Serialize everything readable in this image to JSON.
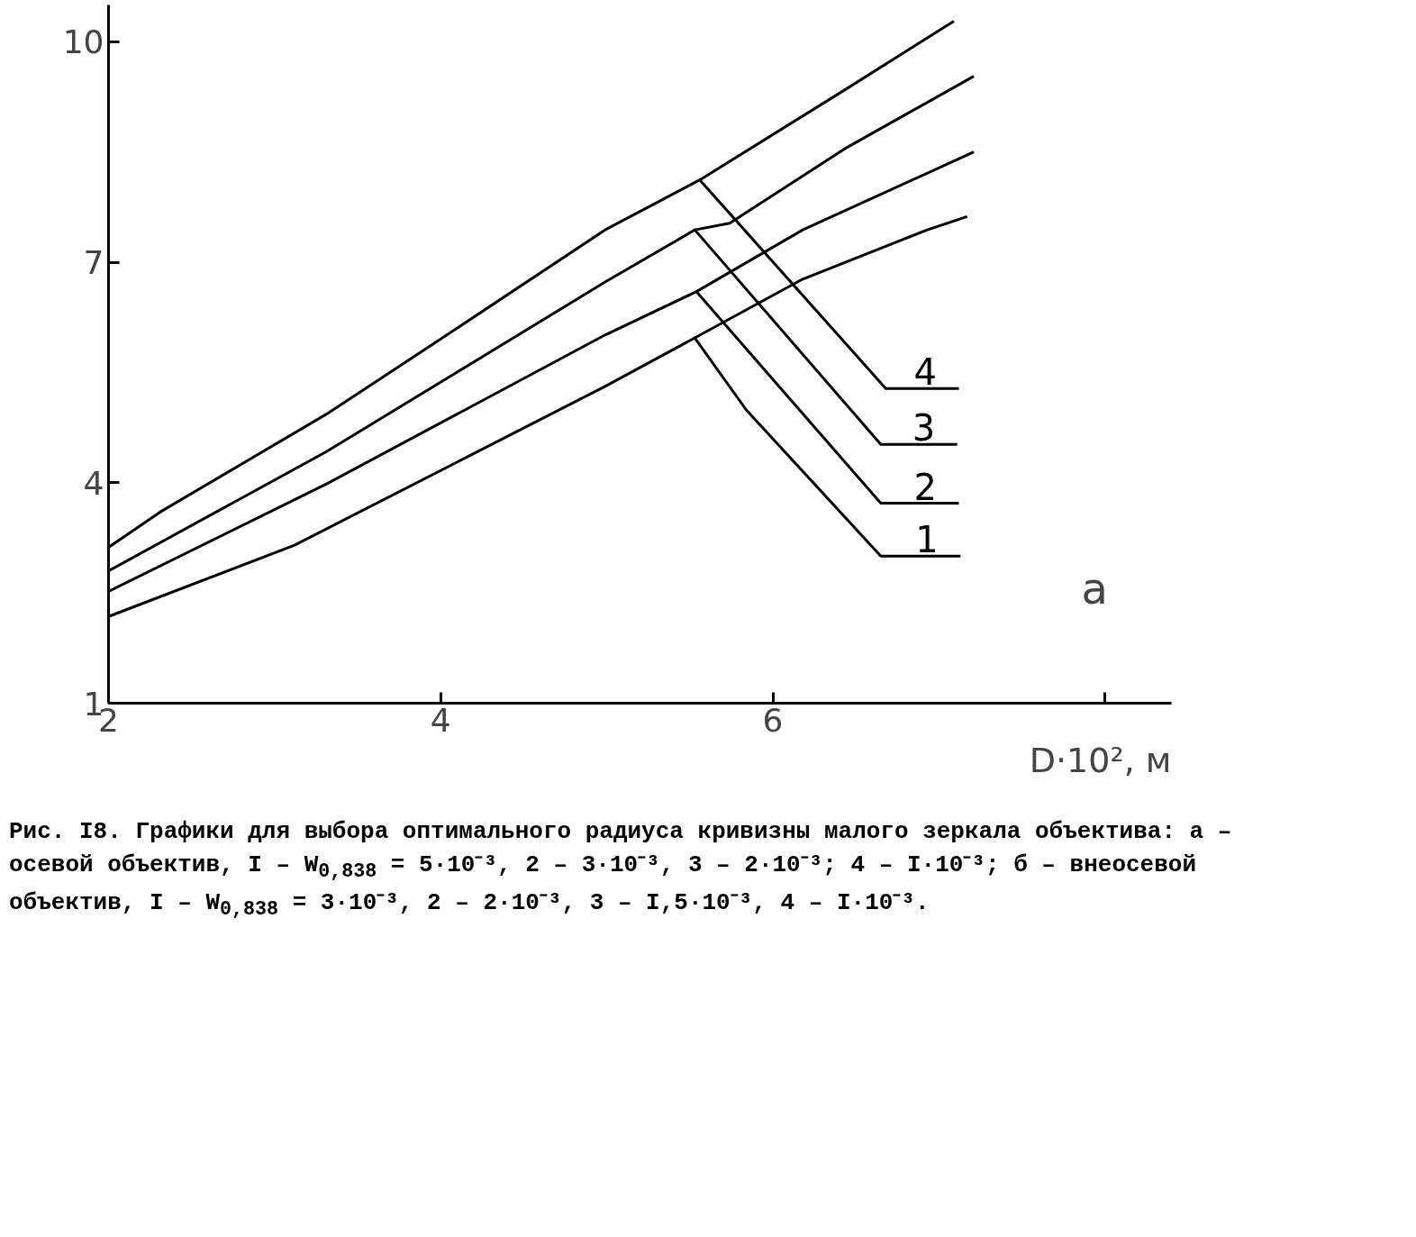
{
  "chart_data": {
    "type": "line",
    "xlabel": "D·10², м",
    "xlim": [
      2,
      8.4
    ],
    "ylim": [
      1,
      10.5
    ],
    "xticks": [
      2,
      4,
      6,
      {
        "value": 8,
        "label": null
      }
    ],
    "yticks": [
      1,
      4,
      7,
      10
    ],
    "grid": false,
    "marker": "none",
    "line_style": "solid",
    "series": [
      {
        "name": "4",
        "color": "#000000",
        "x": [
          2,
          2.31,
          3.31,
          3.99,
          4.99,
          5.56,
          6.68,
          7.12
        ],
        "values": [
          3.12,
          3.6,
          4.93,
          5.94,
          7.44,
          8.12,
          5.28,
          5.28
        ]
      },
      {
        "name": "3",
        "color": "#000000",
        "x": [
          2,
          3.31,
          4.99,
          5.53,
          6.65,
          7.11
        ],
        "values": [
          2.8,
          4.42,
          6.73,
          7.44,
          4.52,
          4.52
        ]
      },
      {
        "name": "2",
        "color": "#000000",
        "x": [
          2,
          3.31,
          4.99,
          5.54,
          6.65,
          7.12
        ],
        "values": [
          2.52,
          3.98,
          6.01,
          6.6,
          3.72,
          3.72
        ]
      },
      {
        "name": "1",
        "color": "#000000",
        "x": [
          2,
          3.12,
          4.99,
          5.53,
          5.84,
          6.65,
          7.13
        ],
        "values": [
          2.18,
          3.15,
          5.31,
          5.97,
          4.99,
          3.0,
          3.0
        ]
      },
      {
        "color": "#000000",
        "x": [
          5.56,
          6.43,
          7.09
        ],
        "values": [
          8.12,
          9.34,
          10.28
        ]
      },
      {
        "color": "#000000",
        "x": [
          5.53,
          5.74,
          6.43,
          7.21
        ],
        "values": [
          7.44,
          7.53,
          8.54,
          9.53
        ]
      },
      {
        "color": "#000000",
        "x": [
          5.54,
          6.18,
          7.21
        ],
        "values": [
          6.6,
          7.44,
          8.5
        ]
      },
      {
        "color": "#000000",
        "x": [
          5.53,
          6.18,
          6.93,
          7.17
        ],
        "values": [
          5.97,
          6.77,
          7.44,
          7.62
        ]
      }
    ],
    "annotations": [
      "а",
      "Рис. I8. Графики для выбора оптимального радиуса кривизны малого зеркала объектива: а – осевой объектив, I – W$_{0,838}$ = 5·10⁻³, 2 – 3·10⁻³, 3 – 2·10⁻³; 4 – I·10⁻³; б – внеосевой объектив, I – W$_{0,838}$ = 3·10⁻³, 2 – 2·10⁻³, 3 – I,5·10⁻³, 4 – I·10⁻³."
    ]
  }
}
